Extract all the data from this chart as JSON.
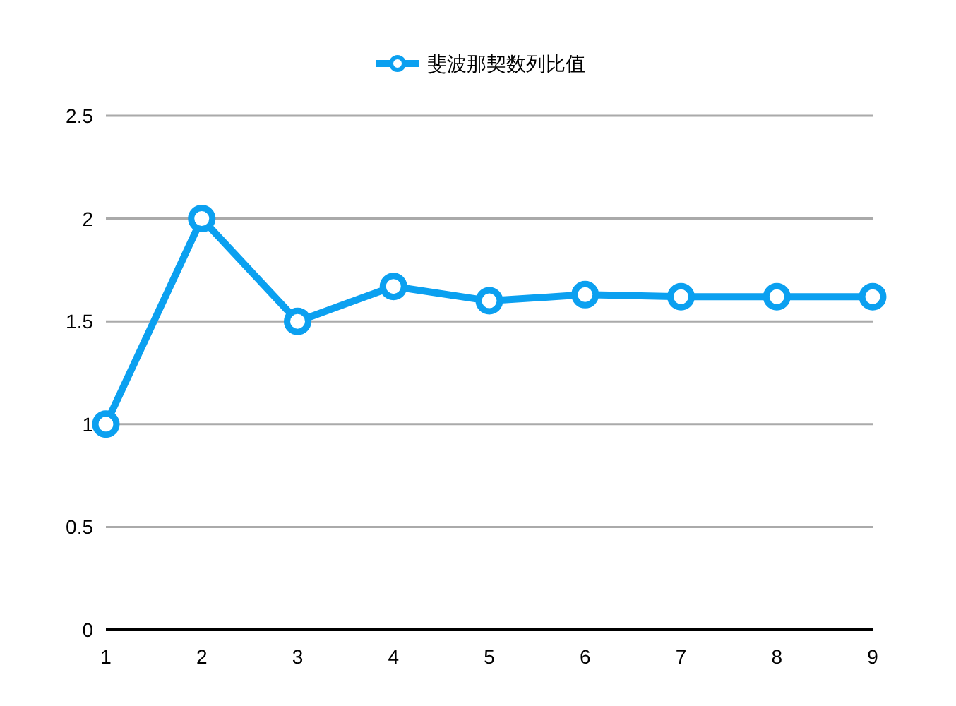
{
  "chart_data": {
    "type": "line",
    "x": [
      1,
      2,
      3,
      4,
      5,
      6,
      7,
      8,
      9
    ],
    "series": [
      {
        "name": "斐波那契数列比值",
        "color": "#0ba0f0",
        "values": [
          1,
          2,
          1.5,
          1.67,
          1.6,
          1.63,
          1.62,
          1.62,
          1.62
        ]
      }
    ],
    "xlim": [
      1,
      9
    ],
    "xticks": [
      1,
      2,
      3,
      4,
      5,
      6,
      7,
      8,
      9
    ],
    "ylim": [
      0,
      2.5
    ],
    "yticks": [
      0,
      0.5,
      1,
      1.5,
      2,
      2.5
    ],
    "grid": "y",
    "legend": "top",
    "marker": "circle",
    "line_style": "solid"
  }
}
